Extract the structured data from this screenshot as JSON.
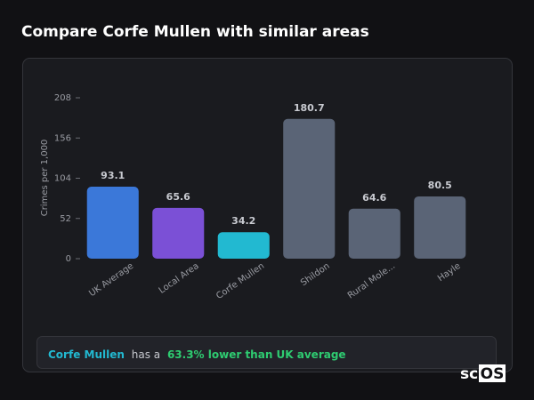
{
  "chart_data": {
    "type": "bar",
    "title": "Compare Corfe Mullen with similar areas",
    "y_label": "Crimes per 1,000",
    "categories": [
      "UK Average",
      "Local Area",
      "Corfe Mullen",
      "Shildon",
      "Rural Mole...",
      "Hayle"
    ],
    "values": [
      93.1,
      65.6,
      34.2,
      180.7,
      64.6,
      80.5
    ],
    "colors": [
      "#3b78d9",
      "#7b50d6",
      "#22b9d1",
      "#5a6476",
      "#5a6476",
      "#5a6476"
    ],
    "ylim": [
      0,
      208
    ],
    "yticks": [
      0,
      52,
      104,
      156,
      208
    ],
    "grid": false
  },
  "summary": {
    "area": "Corfe Mullen",
    "middle": "has a",
    "highlight": "63.3% lower than UK average"
  },
  "logo": {
    "prefix": "sc",
    "boxed": "OS"
  }
}
